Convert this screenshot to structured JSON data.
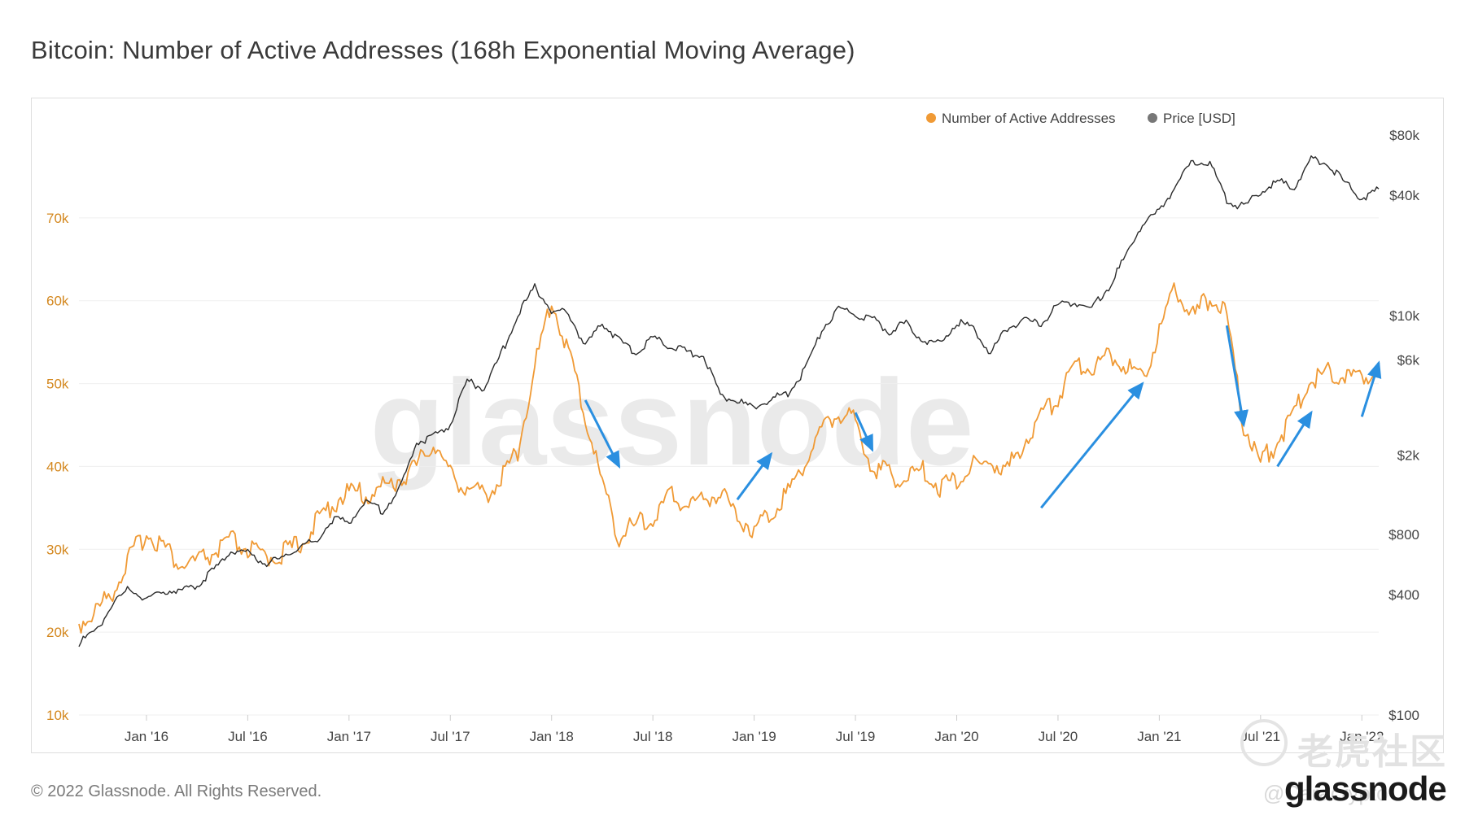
{
  "title": "Bitcoin: Number of Active Addresses (168h Exponential Moving Average)",
  "footer": "© 2022 Glassnode. All Rights Reserved.",
  "brand": "glassnode",
  "watermark_chart": "glassnode",
  "watermark_cn": "老虎社区",
  "watermark_handle": "@Caracrypto",
  "chart_data": {
    "type": "line",
    "x_ticks": [
      "Jan '16",
      "Jul '16",
      "Jan '17",
      "Jul '17",
      "Jan '18",
      "Jul '18",
      "Jan '19",
      "Jul '19",
      "Jan '20",
      "Jul '20",
      "Jan '21",
      "Jul '21",
      "Jan '22"
    ],
    "x_range": [
      "2015-09",
      "2022-02"
    ],
    "y_left": {
      "ticks": [
        "10k",
        "20k",
        "30k",
        "40k",
        "50k",
        "60k",
        "70k"
      ],
      "values": [
        10000,
        20000,
        30000,
        40000,
        50000,
        60000,
        70000
      ],
      "range": [
        10000,
        80000
      ]
    },
    "y_right": {
      "ticks": [
        "$100",
        "$400",
        "$800",
        "$2k",
        "$6k",
        "$10k",
        "$40k",
        "$80k"
      ],
      "values": [
        100,
        400,
        800,
        2000,
        6000,
        10000,
        40000,
        80000
      ],
      "scale": "log",
      "range": [
        100,
        80000
      ]
    },
    "legend_position": "top-right",
    "grid": true,
    "series": [
      {
        "name": "Number of Active Addresses",
        "color": "#f09a35",
        "axis": "left",
        "points": [
          [
            "2015-09",
            21000
          ],
          [
            "2015-10",
            22500
          ],
          [
            "2015-11",
            25000
          ],
          [
            "2015-12",
            29000
          ],
          [
            "2016-01",
            32000
          ],
          [
            "2016-02",
            30500
          ],
          [
            "2016-03",
            28000
          ],
          [
            "2016-04",
            28500
          ],
          [
            "2016-05",
            29500
          ],
          [
            "2016-06",
            31000
          ],
          [
            "2016-07",
            30000
          ],
          [
            "2016-08",
            29000
          ],
          [
            "2016-09",
            29500
          ],
          [
            "2016-10",
            30500
          ],
          [
            "2016-11",
            33000
          ],
          [
            "2016-12",
            35500
          ],
          [
            "2017-01",
            37000
          ],
          [
            "2017-02",
            36500
          ],
          [
            "2017-03",
            37500
          ],
          [
            "2017-04",
            38500
          ],
          [
            "2017-05",
            40000
          ],
          [
            "2017-06",
            43000
          ],
          [
            "2017-07",
            39000
          ],
          [
            "2017-08",
            37500
          ],
          [
            "2017-09",
            36500
          ],
          [
            "2017-10",
            38500
          ],
          [
            "2017-11",
            42000
          ],
          [
            "2017-12",
            52000
          ],
          [
            "2018-01",
            60000
          ],
          [
            "2018-02",
            54000
          ],
          [
            "2018-03",
            46000
          ],
          [
            "2018-04",
            38000
          ],
          [
            "2018-05",
            31500
          ],
          [
            "2018-06",
            33000
          ],
          [
            "2018-07",
            33500
          ],
          [
            "2018-08",
            36500
          ],
          [
            "2018-09",
            35500
          ],
          [
            "2018-10",
            36000
          ],
          [
            "2018-11",
            37000
          ],
          [
            "2018-12",
            34000
          ],
          [
            "2019-01",
            32500
          ],
          [
            "2019-02",
            34500
          ],
          [
            "2019-03",
            37000
          ],
          [
            "2019-04",
            40500
          ],
          [
            "2019-05",
            44500
          ],
          [
            "2019-06",
            46500
          ],
          [
            "2019-07",
            45500
          ],
          [
            "2019-08",
            40000
          ],
          [
            "2019-09",
            39000
          ],
          [
            "2019-10",
            38500
          ],
          [
            "2019-11",
            39500
          ],
          [
            "2019-12",
            37500
          ],
          [
            "2020-01",
            38500
          ],
          [
            "2020-02",
            40000
          ],
          [
            "2020-03",
            40500
          ],
          [
            "2020-04",
            39500
          ],
          [
            "2020-05",
            43000
          ],
          [
            "2020-06",
            46000
          ],
          [
            "2020-07",
            48500
          ],
          [
            "2020-08",
            52500
          ],
          [
            "2020-09",
            52000
          ],
          [
            "2020-10",
            53500
          ],
          [
            "2020-11",
            52500
          ],
          [
            "2020-12",
            50500
          ],
          [
            "2021-01",
            56500
          ],
          [
            "2021-02",
            61500
          ],
          [
            "2021-03",
            58000
          ],
          [
            "2021-04",
            60500
          ],
          [
            "2021-05",
            58000
          ],
          [
            "2021-06",
            45000
          ],
          [
            "2021-07",
            40500
          ],
          [
            "2021-08",
            43000
          ],
          [
            "2021-09",
            46500
          ],
          [
            "2021-10",
            50500
          ],
          [
            "2021-11",
            51500
          ],
          [
            "2021-12",
            51000
          ],
          [
            "2022-01",
            50500
          ],
          [
            "2022-02",
            52500
          ]
        ]
      },
      {
        "name": "Price [USD]",
        "color": "#2b2b2b",
        "axis": "right",
        "points": [
          [
            "2015-09",
            230
          ],
          [
            "2015-10",
            260
          ],
          [
            "2015-11",
            360
          ],
          [
            "2015-12",
            430
          ],
          [
            "2016-01",
            380
          ],
          [
            "2016-02",
            420
          ],
          [
            "2016-03",
            415
          ],
          [
            "2016-04",
            450
          ],
          [
            "2016-05",
            530
          ],
          [
            "2016-06",
            670
          ],
          [
            "2016-07",
            650
          ],
          [
            "2016-08",
            575
          ],
          [
            "2016-09",
            605
          ],
          [
            "2016-10",
            700
          ],
          [
            "2016-11",
            740
          ],
          [
            "2016-12",
            950
          ],
          [
            "2017-01",
            920
          ],
          [
            "2017-02",
            1180
          ],
          [
            "2017-03",
            1050
          ],
          [
            "2017-04",
            1350
          ],
          [
            "2017-05",
            2300
          ],
          [
            "2017-06",
            2500
          ],
          [
            "2017-07",
            2850
          ],
          [
            "2017-08",
            4700
          ],
          [
            "2017-09",
            4300
          ],
          [
            "2017-10",
            6400
          ],
          [
            "2017-11",
            10000
          ],
          [
            "2017-12",
            14000
          ],
          [
            "2018-01",
            10500
          ],
          [
            "2018-02",
            10300
          ],
          [
            "2018-03",
            7000
          ],
          [
            "2018-04",
            9200
          ],
          [
            "2018-05",
            7500
          ],
          [
            "2018-06",
            6400
          ],
          [
            "2018-07",
            7800
          ],
          [
            "2018-08",
            7000
          ],
          [
            "2018-09",
            6600
          ],
          [
            "2018-10",
            6300
          ],
          [
            "2018-11",
            4000
          ],
          [
            "2018-12",
            3700
          ],
          [
            "2019-01",
            3450
          ],
          [
            "2019-02",
            3800
          ],
          [
            "2019-03",
            4100
          ],
          [
            "2019-04",
            5300
          ],
          [
            "2019-05",
            8500
          ],
          [
            "2019-06",
            10800
          ],
          [
            "2019-07",
            10100
          ],
          [
            "2019-08",
            9600
          ],
          [
            "2019-09",
            8300
          ],
          [
            "2019-10",
            9200
          ],
          [
            "2019-11",
            7500
          ],
          [
            "2019-12",
            7200
          ],
          [
            "2020-01",
            9300
          ],
          [
            "2020-02",
            8600
          ],
          [
            "2020-03",
            6400
          ],
          [
            "2020-04",
            8700
          ],
          [
            "2020-05",
            9500
          ],
          [
            "2020-06",
            9100
          ],
          [
            "2020-07",
            11300
          ],
          [
            "2020-08",
            11700
          ],
          [
            "2020-09",
            10800
          ],
          [
            "2020-10",
            13800
          ],
          [
            "2020-11",
            19700
          ],
          [
            "2020-12",
            29000
          ],
          [
            "2021-01",
            33000
          ],
          [
            "2021-02",
            45000
          ],
          [
            "2021-03",
            58800
          ],
          [
            "2021-04",
            57700
          ],
          [
            "2021-05",
            37300
          ],
          [
            "2021-06",
            35000
          ],
          [
            "2021-07",
            41500
          ],
          [
            "2021-08",
            47000
          ],
          [
            "2021-09",
            43800
          ],
          [
            "2021-10",
            61300
          ],
          [
            "2021-11",
            57000
          ],
          [
            "2021-12",
            46300
          ],
          [
            "2022-01",
            38500
          ],
          [
            "2022-02",
            43000
          ]
        ]
      }
    ]
  }
}
